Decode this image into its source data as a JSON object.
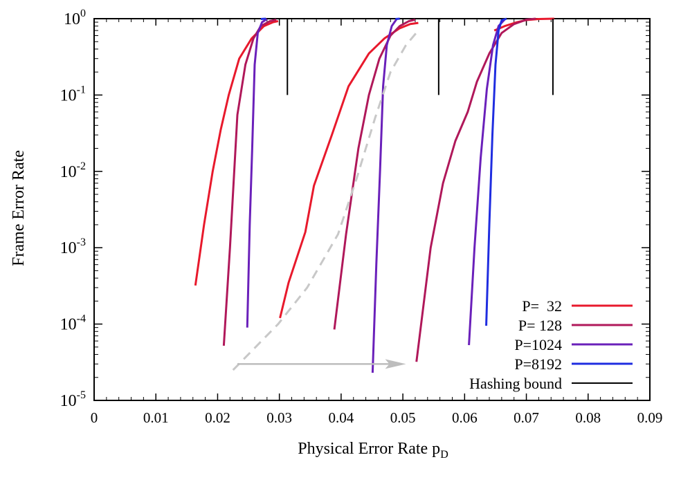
{
  "chart_data": {
    "type": "line",
    "title": "",
    "xlabel": "Physical Error Rate p",
    "xlabel_sub": "D",
    "ylabel": "Frame Error Rate",
    "xlim": [
      0,
      0.09
    ],
    "ylim": [
      1e-05,
      1
    ],
    "yscale": "log",
    "grid": false,
    "legend_position": "bottom-right",
    "x_ticks": [
      "0",
      "0.01",
      "0.02",
      "0.03",
      "0.04",
      "0.05",
      "0.06",
      "0.07",
      "0.08",
      "0.09"
    ],
    "y_tick_labels": [
      {
        "base": "10",
        "exp": "-5"
      },
      {
        "base": "10",
        "exp": "-4"
      },
      {
        "base": "10",
        "exp": "-3"
      },
      {
        "base": "10",
        "exp": "-2"
      },
      {
        "base": "10",
        "exp": "-1"
      },
      {
        "base": "10",
        "exp": "0"
      }
    ],
    "series": [
      {
        "name": "P=  32",
        "color": "#e8192c",
        "groups": [
          [
            [
              0.0164,
              0.00032
            ],
            [
              0.0178,
              0.002
            ],
            [
              0.0192,
              0.01
            ],
            [
              0.0205,
              0.035
            ],
            [
              0.0218,
              0.1
            ],
            [
              0.0235,
              0.3
            ],
            [
              0.0255,
              0.55
            ],
            [
              0.0275,
              0.8
            ],
            [
              0.029,
              0.9
            ],
            [
              0.0298,
              0.93
            ]
          ],
          [
            [
              0.0301,
              0.00012
            ],
            [
              0.0315,
              0.00035
            ],
            [
              0.0342,
              0.0016
            ],
            [
              0.0356,
              0.0065
            ],
            [
              0.0385,
              0.03
            ],
            [
              0.0412,
              0.13
            ],
            [
              0.0445,
              0.35
            ],
            [
              0.047,
              0.55
            ],
            [
              0.0495,
              0.75
            ],
            [
              0.0512,
              0.85
            ],
            [
              0.0525,
              0.88
            ]
          ],
          [
            [
              0.0648,
              0.7
            ],
            [
              0.0665,
              0.8
            ],
            [
              0.0685,
              0.9
            ],
            [
              0.07,
              0.96
            ],
            [
              0.072,
              0.99
            ],
            [
              0.0745,
              1.0
            ]
          ]
        ]
      },
      {
        "name": "P= 128",
        "color": "#b0185a",
        "groups": [
          [
            [
              0.021,
              5.2e-05
            ],
            [
              0.022,
              0.001
            ],
            [
              0.0232,
              0.055
            ],
            [
              0.0245,
              0.25
            ],
            [
              0.0258,
              0.55
            ],
            [
              0.027,
              0.8
            ],
            [
              0.0285,
              0.93
            ],
            [
              0.0295,
              0.97
            ]
          ],
          [
            [
              0.0389,
              8.5e-05
            ],
            [
              0.0408,
              0.0015
            ],
            [
              0.0428,
              0.02
            ],
            [
              0.0445,
              0.1
            ],
            [
              0.0462,
              0.3
            ],
            [
              0.048,
              0.6
            ],
            [
              0.0495,
              0.8
            ],
            [
              0.051,
              0.93
            ],
            [
              0.052,
              0.97
            ]
          ],
          [
            [
              0.0522,
              3.2e-05
            ],
            [
              0.0545,
              0.001
            ],
            [
              0.0565,
              0.007
            ],
            [
              0.0585,
              0.025
            ],
            [
              0.0605,
              0.06
            ],
            [
              0.062,
              0.15
            ],
            [
              0.064,
              0.35
            ],
            [
              0.066,
              0.65
            ],
            [
              0.068,
              0.85
            ],
            [
              0.07,
              0.97
            ],
            [
              0.0715,
              1.0
            ]
          ]
        ]
      },
      {
        "name": "P=1024",
        "color": "#6a20ba",
        "groups": [
          [
            [
              0.0248,
              9e-05
            ],
            [
              0.0252,
              0.002
            ],
            [
              0.0256,
              0.02
            ],
            [
              0.026,
              0.25
            ],
            [
              0.0265,
              0.65
            ],
            [
              0.0272,
              0.9
            ],
            [
              0.028,
              0.99
            ]
          ],
          [
            [
              0.0451,
              2.3e-05
            ],
            [
              0.0457,
              0.0006
            ],
            [
              0.0463,
              0.01
            ],
            [
              0.0468,
              0.13
            ],
            [
              0.0474,
              0.45
            ],
            [
              0.0482,
              0.8
            ],
            [
              0.049,
              0.99
            ]
          ],
          [
            [
              0.0607,
              5.3e-05
            ],
            [
              0.0616,
              0.001
            ],
            [
              0.0626,
              0.015
            ],
            [
              0.0636,
              0.12
            ],
            [
              0.0646,
              0.45
            ],
            [
              0.0655,
              0.8
            ],
            [
              0.0665,
              0.98
            ]
          ]
        ]
      },
      {
        "name": "P=8192",
        "color": "#1f2de0",
        "groups": [
          [
            [
              0.027,
              0.99
            ],
            [
              0.0278,
              1.0
            ]
          ],
          [
            [
              0.0488,
              0.99
            ],
            [
              0.0495,
              1.0
            ]
          ],
          [
            [
              0.0635,
              9.5e-05
            ],
            [
              0.064,
              0.002
            ],
            [
              0.0645,
              0.03
            ],
            [
              0.065,
              0.25
            ],
            [
              0.0655,
              0.7
            ],
            [
              0.066,
              0.95
            ],
            [
              0.0668,
              1.0
            ]
          ]
        ]
      },
      {
        "name": "Hashing bound",
        "color": "#000000",
        "groups": [
          [
            [
              0.0313,
              0.1
            ],
            [
              0.0313,
              1.0
            ]
          ],
          [
            [
              0.0558,
              0.1
            ],
            [
              0.0558,
              1.0
            ]
          ],
          [
            [
              0.0743,
              0.1
            ],
            [
              0.0743,
              1.0
            ]
          ]
        ]
      }
    ],
    "annotations": {
      "dashed_curve": {
        "color": "#c8c8c8",
        "points": [
          [
            0.0225,
            2.5e-05
          ],
          [
            0.0298,
            0.0001
          ],
          [
            0.0345,
            0.0003
          ],
          [
            0.0395,
            0.0015
          ],
          [
            0.0425,
            0.008
          ],
          [
            0.0455,
            0.05
          ],
          [
            0.048,
            0.2
          ],
          [
            0.0505,
            0.45
          ],
          [
            0.0525,
            0.7
          ]
        ]
      },
      "arrow": {
        "color": "#bdbdbd",
        "from": [
          0.0232,
          3e-05
        ],
        "to": [
          0.0505,
          3e-05
        ]
      }
    }
  }
}
